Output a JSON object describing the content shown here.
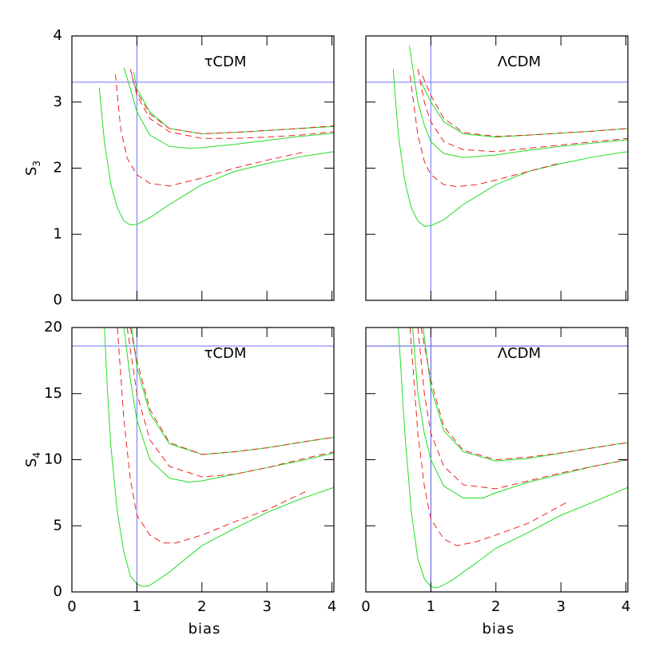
{
  "chart_data": [
    {
      "type": "line",
      "annotation": "τCDM",
      "ylabel": "S",
      "ylabel_subscript": "3",
      "xlim": [
        0,
        4.03
      ],
      "ylim": [
        0,
        4
      ],
      "xticks": [
        0,
        1,
        2,
        3,
        4
      ],
      "yticks": [
        0,
        1,
        2,
        3,
        4
      ],
      "show_xtick_labels": false,
      "show_ytick_labels": true,
      "hlines": [
        3.3
      ],
      "vlines": [
        1
      ],
      "refline_color": "#7070ff",
      "series": [
        {
          "color": "#22dd22",
          "dash": false,
          "x": [
            0.42,
            0.5,
            0.6,
            0.7,
            0.8,
            0.9,
            1.0,
            1.2,
            1.5,
            2.0,
            2.5,
            3.0,
            3.5,
            4.03
          ],
          "values": [
            3.22,
            2.4,
            1.75,
            1.4,
            1.2,
            1.14,
            1.15,
            1.25,
            1.45,
            1.75,
            1.95,
            2.07,
            2.17,
            2.25
          ]
        },
        {
          "color": "#ee2222",
          "dash": true,
          "x": [
            0.67,
            0.75,
            0.85,
            1.0,
            1.2,
            1.5,
            2.0,
            2.5,
            3.0,
            3.6
          ],
          "values": [
            3.42,
            2.6,
            2.15,
            1.9,
            1.77,
            1.73,
            1.85,
            2.0,
            2.12,
            2.25
          ]
        },
        {
          "color": "#22dd22",
          "dash": false,
          "x": [
            0.8,
            0.9,
            1.0,
            1.2,
            1.5,
            1.8,
            2.0,
            2.5,
            3.0,
            3.5,
            4.03
          ],
          "values": [
            3.52,
            3.2,
            2.85,
            2.5,
            2.33,
            2.3,
            2.31,
            2.36,
            2.42,
            2.48,
            2.53
          ]
        },
        {
          "color": "#ee2222",
          "dash": true,
          "x": [
            0.9,
            1.0,
            1.2,
            1.5,
            2.0,
            2.5,
            3.0,
            3.5,
            4.03
          ],
          "values": [
            3.5,
            3.1,
            2.75,
            2.55,
            2.45,
            2.45,
            2.47,
            2.5,
            2.55
          ]
        },
        {
          "color": "#22dd22",
          "dash": false,
          "x": [
            0.95,
            1.0,
            1.2,
            1.5,
            2.0,
            2.5,
            3.0,
            3.5,
            4.03
          ],
          "values": [
            3.45,
            3.2,
            2.85,
            2.6,
            2.52,
            2.54,
            2.57,
            2.6,
            2.63
          ]
        },
        {
          "color": "#ee2222",
          "dash": true,
          "x": [
            0.92,
            1.0,
            1.2,
            1.5,
            2.0,
            2.5,
            3.0,
            3.5,
            4.03
          ],
          "values": [
            3.4,
            3.15,
            2.82,
            2.6,
            2.52,
            2.54,
            2.57,
            2.6,
            2.64
          ]
        }
      ]
    },
    {
      "type": "line",
      "annotation": "ΛCDM",
      "xlim": [
        0,
        4.03
      ],
      "ylim": [
        0,
        4
      ],
      "xticks": [
        0,
        1,
        2,
        3,
        4
      ],
      "yticks": [
        0,
        1,
        2,
        3,
        4
      ],
      "show_xtick_labels": false,
      "show_ytick_labels": false,
      "hlines": [
        3.3
      ],
      "vlines": [
        1
      ],
      "refline_color": "#7070ff",
      "series": [
        {
          "color": "#22dd22",
          "dash": false,
          "x": [
            0.42,
            0.5,
            0.6,
            0.7,
            0.8,
            0.9,
            1.0,
            1.2,
            1.5,
            2.0,
            2.5,
            3.0,
            3.5,
            4.03
          ],
          "values": [
            3.5,
            2.5,
            1.8,
            1.4,
            1.2,
            1.12,
            1.13,
            1.22,
            1.45,
            1.75,
            1.95,
            2.07,
            2.17,
            2.25
          ]
        },
        {
          "color": "#ee2222",
          "dash": true,
          "x": [
            0.68,
            0.8,
            0.9,
            1.0,
            1.2,
            1.4,
            1.7,
            2.0,
            2.5,
            3.0
          ],
          "values": [
            3.4,
            2.5,
            2.1,
            1.9,
            1.75,
            1.72,
            1.75,
            1.82,
            1.95,
            2.08
          ]
        },
        {
          "color": "#22dd22",
          "dash": false,
          "x": [
            0.67,
            0.8,
            0.9,
            1.0,
            1.2,
            1.5,
            2.0,
            2.5,
            3.0,
            3.5,
            4.03
          ],
          "values": [
            3.85,
            3.0,
            2.65,
            2.4,
            2.22,
            2.16,
            2.2,
            2.27,
            2.33,
            2.38,
            2.43
          ]
        },
        {
          "color": "#ee2222",
          "dash": true,
          "x": [
            0.8,
            0.9,
            1.0,
            1.2,
            1.5,
            2.0,
            2.5,
            3.0,
            3.5,
            4.03
          ],
          "values": [
            3.5,
            3.0,
            2.7,
            2.4,
            2.28,
            2.25,
            2.3,
            2.35,
            2.4,
            2.45
          ]
        },
        {
          "color": "#22dd22",
          "dash": false,
          "x": [
            0.85,
            1.0,
            1.2,
            1.5,
            2.0,
            2.5,
            3.0,
            3.5,
            4.03
          ],
          "values": [
            3.3,
            3.0,
            2.7,
            2.52,
            2.47,
            2.5,
            2.53,
            2.56,
            2.6
          ]
        },
        {
          "color": "#ee2222",
          "dash": true,
          "x": [
            0.87,
            1.0,
            1.2,
            1.5,
            2.0,
            2.5,
            3.0,
            3.5,
            4.03
          ],
          "values": [
            3.4,
            3.1,
            2.75,
            2.54,
            2.48,
            2.5,
            2.53,
            2.56,
            2.6
          ]
        }
      ]
    },
    {
      "type": "line",
      "annotation": "τCDM",
      "ylabel": "S",
      "ylabel_subscript": "4",
      "xlabel": "bias",
      "xlim": [
        0,
        4.03
      ],
      "ylim": [
        0,
        20
      ],
      "xticks": [
        0,
        1,
        2,
        3,
        4
      ],
      "yticks": [
        0,
        5,
        10,
        15,
        20
      ],
      "show_xtick_labels": true,
      "show_ytick_labels": true,
      "hlines": [
        18.6
      ],
      "vlines": [
        1
      ],
      "refline_color": "#7070ff",
      "series": [
        {
          "color": "#22dd22",
          "dash": false,
          "x": [
            0.5,
            0.55,
            0.6,
            0.7,
            0.8,
            0.9,
            1.0,
            1.1,
            1.2,
            1.5,
            2.0,
            2.5,
            3.0,
            3.5,
            4.03
          ],
          "values": [
            20,
            15,
            11,
            6,
            3,
            1.2,
            0.6,
            0.4,
            0.5,
            1.5,
            3.5,
            4.8,
            6,
            7,
            7.9
          ]
        },
        {
          "color": "#ee2222",
          "dash": true,
          "x": [
            0.7,
            0.8,
            0.9,
            1.0,
            1.2,
            1.4,
            1.6,
            2.0,
            2.5,
            3.0,
            3.6
          ],
          "values": [
            20,
            13,
            8.5,
            5.8,
            4.3,
            3.7,
            3.7,
            4.3,
            5.3,
            6.2,
            7.6
          ]
        },
        {
          "color": "#22dd22",
          "dash": false,
          "x": [
            0.8,
            0.9,
            1.0,
            1.2,
            1.5,
            1.8,
            2.0,
            2.5,
            3.0,
            3.5,
            4.03
          ],
          "values": [
            20,
            16,
            13,
            10,
            8.6,
            8.3,
            8.4,
            8.9,
            9.4,
            9.9,
            10.5
          ]
        },
        {
          "color": "#ee2222",
          "dash": true,
          "x": [
            0.85,
            1.0,
            1.2,
            1.5,
            2.0,
            2.5,
            3.0,
            3.5,
            4.03
          ],
          "values": [
            20,
            15,
            11.5,
            9.5,
            8.7,
            8.9,
            9.4,
            10,
            10.6
          ]
        },
        {
          "color": "#22dd22",
          "dash": false,
          "x": [
            0.92,
            1.0,
            1.2,
            1.5,
            2.0,
            2.5,
            3.0,
            3.5,
            4.03
          ],
          "values": [
            20,
            17,
            13.5,
            11.2,
            10.4,
            10.6,
            10.9,
            11.3,
            11.7
          ]
        },
        {
          "color": "#ee2222",
          "dash": true,
          "x": [
            0.9,
            1.0,
            1.2,
            1.5,
            2.0,
            2.5,
            3.0,
            3.5,
            4.03
          ],
          "values": [
            20,
            17.5,
            13.8,
            11.3,
            10.4,
            10.6,
            10.9,
            11.3,
            11.7
          ]
        }
      ]
    },
    {
      "type": "line",
      "annotation": "ΛCDM",
      "xlabel": "bias",
      "xlim": [
        0,
        4.03
      ],
      "ylim": [
        0,
        20
      ],
      "xticks": [
        0,
        1,
        2,
        3,
        4
      ],
      "yticks": [
        0,
        5,
        10,
        15,
        20
      ],
      "show_xtick_labels": true,
      "show_ytick_labels": false,
      "hlines": [
        18.6
      ],
      "vlines": [
        1
      ],
      "refline_color": "#5050dd",
      "series": [
        {
          "color": "#22dd22",
          "dash": false,
          "x": [
            0.5,
            0.6,
            0.7,
            0.8,
            0.9,
            1.0,
            1.1,
            1.3,
            1.7,
            2.0,
            2.5,
            3.0,
            3.5,
            4.03
          ],
          "values": [
            20,
            12,
            6,
            2.5,
            1,
            0.4,
            0.3,
            0.8,
            2.2,
            3.3,
            4.5,
            5.8,
            6.8,
            7.9
          ]
        },
        {
          "color": "#ee2222",
          "dash": true,
          "x": [
            0.68,
            0.8,
            0.9,
            1.0,
            1.2,
            1.4,
            1.7,
            2.0,
            2.5,
            3.1
          ],
          "values": [
            20,
            12,
            8,
            5.5,
            4,
            3.5,
            3.8,
            4.3,
            5.2,
            6.8
          ]
        },
        {
          "color": "#22dd22",
          "dash": false,
          "x": [
            0.72,
            0.8,
            0.9,
            1.0,
            1.2,
            1.5,
            1.8,
            2.0,
            2.5,
            3.0,
            3.5,
            4.03
          ],
          "values": [
            20,
            15,
            12,
            10,
            8,
            7.1,
            7.1,
            7.5,
            8.3,
            8.9,
            9.5,
            10
          ]
        },
        {
          "color": "#ee2222",
          "dash": true,
          "x": [
            0.8,
            0.9,
            1.0,
            1.2,
            1.5,
            2.0,
            2.5,
            3.0,
            3.5,
            4.03
          ],
          "values": [
            20,
            15,
            12,
            9.5,
            8.1,
            7.8,
            8.4,
            9,
            9.5,
            10
          ]
        },
        {
          "color": "#22dd22",
          "dash": false,
          "x": [
            0.88,
            1.0,
            1.2,
            1.5,
            2.0,
            2.5,
            3.0,
            3.5,
            4.03
          ],
          "values": [
            20,
            15.5,
            12.2,
            10.6,
            9.9,
            10.1,
            10.5,
            10.9,
            11.3
          ]
        },
        {
          "color": "#ee2222",
          "dash": true,
          "x": [
            0.85,
            1.0,
            1.2,
            1.5,
            2.0,
            2.5,
            3.0,
            3.5,
            4.03
          ],
          "values": [
            20,
            16,
            12.5,
            10.7,
            10,
            10.2,
            10.5,
            10.9,
            11.3
          ]
        }
      ]
    }
  ]
}
